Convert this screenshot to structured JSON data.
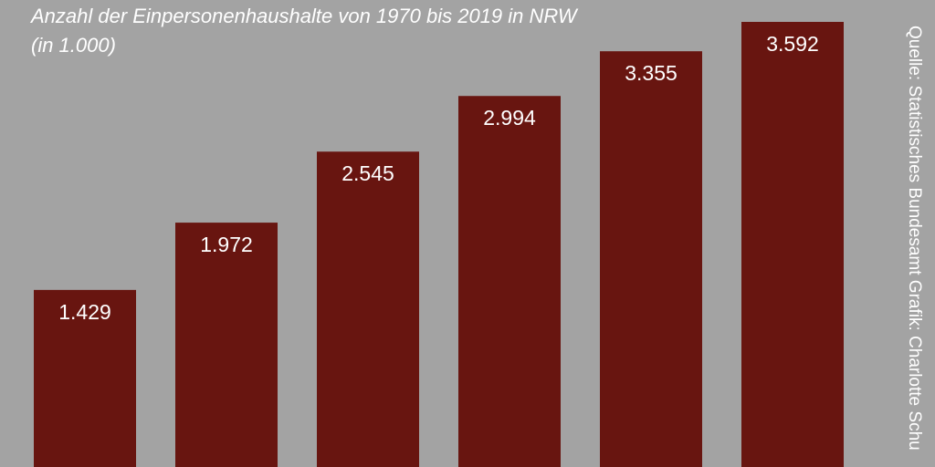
{
  "chart_data": {
    "type": "bar",
    "title": "Anzahl der Einpersonenhaushalte von 1970 bis 2019 in NRW",
    "subtitle": "(in 1.000)",
    "values": [
      1429,
      1972,
      2545,
      2994,
      3355,
      3592
    ],
    "value_labels": [
      "1.429",
      "1.972",
      "2.545",
      "2.994",
      "3.355",
      "3.592"
    ],
    "bar_color": "#681510",
    "background_color": "#a3a3a3",
    "label_color": "#ffffff"
  },
  "source_note": "Quelle: Statistisches Bundesamt   Grafik: Charlotte Schu"
}
